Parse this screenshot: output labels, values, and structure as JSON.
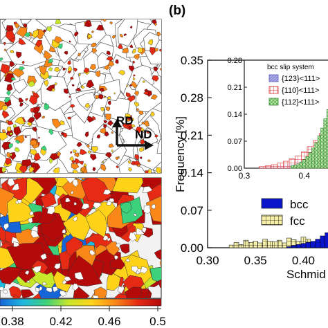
{
  "panel_label": "(b)",
  "colorbar": {
    "ticks": [
      "0.38",
      "0.42",
      "0.46",
      "0.5"
    ],
    "colors": [
      "#1565d8",
      "#20b8e0",
      "#3cd17a",
      "#c8e62a",
      "#ffd21a",
      "#f98818",
      "#e62a14",
      "#b40a0a"
    ]
  },
  "map_top": {
    "axis_rd": "RD",
    "axis_nd": "ND"
  },
  "chart_data": [
    {
      "type": "bar",
      "title": "",
      "xlabel": "Schmid",
      "ylabel": "Frequency [%]",
      "xlim": [
        0.3,
        0.43
      ],
      "ylim": [
        0.0,
        0.35
      ],
      "xticks": [
        "0.30",
        "0.35",
        "0.40"
      ],
      "yticks": [
        "0.00",
        "0.07",
        "0.14",
        "0.21",
        "0.28",
        "0.35"
      ],
      "legend": {
        "placement": "bottom-right",
        "entries": [
          "bcc",
          "fcc"
        ]
      },
      "series": [
        {
          "name": "bcc",
          "color": "#0a14c8",
          "x": [
            0.385,
            0.39,
            0.395,
            0.4,
            0.405,
            0.41,
            0.415,
            0.42,
            0.425
          ],
          "values": [
            0.002,
            0.004,
            0.006,
            0.008,
            0.01,
            0.012,
            0.016,
            0.022,
            0.028
          ]
        },
        {
          "name": "fcc",
          "color": "#f7f0a8",
          "x": [
            0.325,
            0.33,
            0.335,
            0.34,
            0.345,
            0.35,
            0.355,
            0.36,
            0.365,
            0.37,
            0.375,
            0.38,
            0.385,
            0.39,
            0.395,
            0.4,
            0.405,
            0.41,
            0.415,
            0.42,
            0.425
          ],
          "values": [
            0.005,
            0.01,
            0.006,
            0.014,
            0.01,
            0.012,
            0.009,
            0.016,
            0.012,
            0.011,
            0.014,
            0.009,
            0.018,
            0.015,
            0.012,
            0.02,
            0.016,
            0.011,
            0.013,
            0.01,
            0.012
          ]
        }
      ]
    },
    {
      "type": "bar",
      "title": "",
      "xlabel": "",
      "ylabel": "",
      "xlim": [
        0.3,
        0.45
      ],
      "ylim": [
        0.0,
        0.28
      ],
      "xticks": [
        "0.3",
        "0.4"
      ],
      "yticks": [
        "0.00",
        "0.07",
        "0.14",
        "0.21",
        "0.28"
      ],
      "legend": {
        "title": "bcc slip system",
        "placement": "top-right",
        "entries": [
          "{123}<111>",
          "{110}<111>",
          "{112}<111>"
        ]
      },
      "series": [
        {
          "name": "{123}<111>",
          "color": "#8f8fd8",
          "x": [
            0.33,
            0.34,
            0.35,
            0.36,
            0.37,
            0.38,
            0.39,
            0.4,
            0.41,
            0.42,
            0.43,
            0.44
          ],
          "values": [
            0.002,
            0.003,
            0.004,
            0.006,
            0.008,
            0.011,
            0.016,
            0.022,
            0.03,
            0.042,
            0.058,
            0.08
          ]
        },
        {
          "name": "{110}<111>",
          "color": "#e03030",
          "x": [
            0.33,
            0.34,
            0.35,
            0.36,
            0.37,
            0.38,
            0.39,
            0.4,
            0.41,
            0.42,
            0.43,
            0.44
          ],
          "values": [
            0.004,
            0.006,
            0.009,
            0.013,
            0.018,
            0.024,
            0.032,
            0.042,
            0.056,
            0.072,
            0.09,
            0.11
          ]
        },
        {
          "name": "{112}<111>",
          "color": "#4ab84a",
          "x": [
            0.38,
            0.385,
            0.39,
            0.395,
            0.4,
            0.405,
            0.41,
            0.415,
            0.42,
            0.425,
            0.43,
            0.435,
            0.44,
            0.445
          ],
          "values": [
            0.006,
            0.008,
            0.011,
            0.016,
            0.022,
            0.03,
            0.04,
            0.052,
            0.066,
            0.084,
            0.104,
            0.128,
            0.152,
            0.18
          ]
        }
      ]
    }
  ]
}
